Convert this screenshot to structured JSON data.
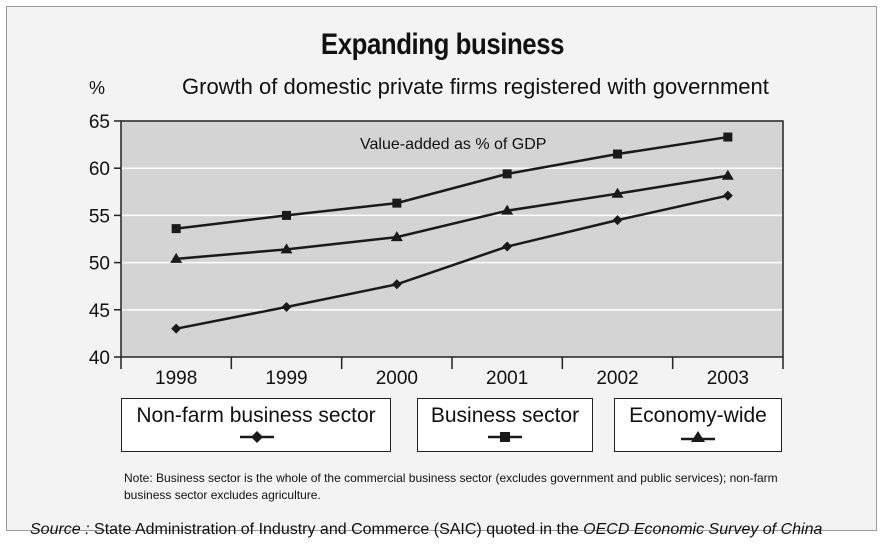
{
  "title": "Expanding business",
  "subtitle": "Growth of domestic private firms registered with government",
  "y_unit": "%",
  "annotation": "Value-added as % of GDP",
  "note": "Note: Business sector is the whole of the commercial business sector (excludes government and public services); non-farm business sector excludes agriculture.",
  "source": {
    "prefix": "Source :",
    "text": " State Administration of Industry and Commerce (SAIC) quoted in the ",
    "italic": "OECD Economic Survey of China"
  },
  "colors": {
    "line": "#1a1a1a",
    "plot_bg": "#d4d4d4",
    "frame_bg": "#f3f3f3",
    "grid": "#ffffff"
  },
  "legend": [
    {
      "label": "Non-farm business sector",
      "marker": "diamond"
    },
    {
      "label": "Business sector",
      "marker": "square"
    },
    {
      "label": "Economy-wide",
      "marker": "triangle"
    }
  ],
  "chart_data": {
    "type": "line",
    "title": "Expanding business",
    "subtitle": "Growth of domestic private firms registered with government",
    "ylabel": "%",
    "ylim": [
      40,
      65
    ],
    "yticks": [
      40,
      45,
      50,
      55,
      60,
      65
    ],
    "categories": [
      "1998",
      "1999",
      "2000",
      "2001",
      "2002",
      "2003"
    ],
    "grid": true,
    "legend_position": "bottom",
    "series": [
      {
        "name": "Non-farm business sector",
        "marker": "diamond",
        "values": [
          43.0,
          45.3,
          47.7,
          51.7,
          54.5,
          57.1
        ]
      },
      {
        "name": "Business sector",
        "marker": "square",
        "values": [
          53.6,
          55.0,
          56.3,
          59.4,
          61.5,
          63.3
        ]
      },
      {
        "name": "Economy-wide",
        "marker": "triangle",
        "values": [
          50.4,
          51.4,
          52.7,
          55.5,
          57.3,
          59.2
        ]
      }
    ]
  }
}
